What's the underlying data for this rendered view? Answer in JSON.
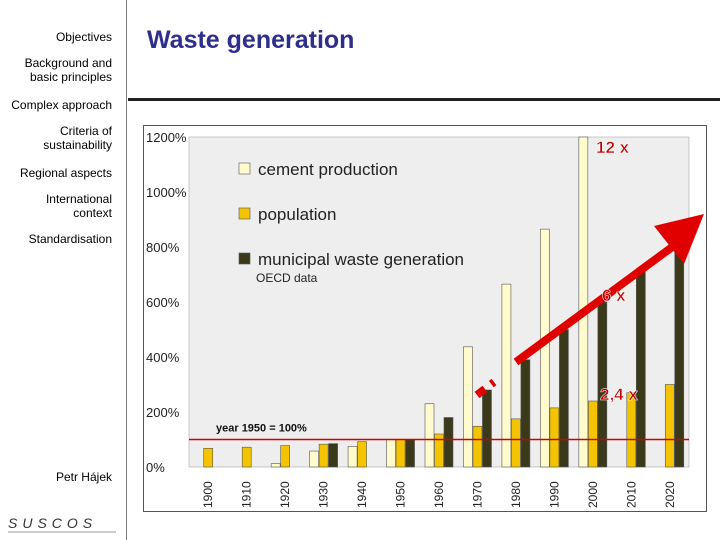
{
  "sidebar": {
    "items": [
      {
        "label": "Objectives"
      },
      {
        "label": "Background and basic principles"
      },
      {
        "label": "Complex approach"
      },
      {
        "label": "Criteria of sustainability"
      },
      {
        "label": "Regional aspects"
      },
      {
        "label": "International context"
      },
      {
        "label": "Standardisation"
      }
    ],
    "author": "Petr Hájek",
    "logo_text": "SUSCOS"
  },
  "slide": {
    "title": "Waste generation"
  },
  "colors": {
    "title": "#2e2e8c",
    "cement": "#fffbcc",
    "population": "#f5c400",
    "waste": "#3a3a1a",
    "reference_line": "#d40000",
    "arrow": "#e00000",
    "annotation": "#c00000"
  },
  "chart_data": {
    "type": "bar",
    "categories": [
      "1900",
      "1910",
      "1920",
      "1930",
      "1940",
      "1950",
      "1960",
      "1970",
      "1980",
      "1990",
      "2000",
      "2010",
      "2020"
    ],
    "series": [
      {
        "name": "cement production",
        "values": [
          null,
          null,
          12,
          58,
          75,
          100,
          230,
          437,
          665,
          865,
          1200,
          null,
          null
        ]
      },
      {
        "name": "population",
        "values": [
          68,
          72,
          78,
          83,
          92,
          100,
          120,
          148,
          175,
          215,
          240,
          270,
          300
        ]
      },
      {
        "name": "municipal waste generation",
        "values": [
          null,
          null,
          null,
          85,
          null,
          100,
          180,
          280,
          390,
          500,
          600,
          720,
          810
        ]
      }
    ],
    "ylim": [
      0,
      1200
    ],
    "yticks": [
      0,
      200,
      400,
      600,
      800,
      1000,
      1200
    ],
    "ytick_labels": [
      "0%",
      "200%",
      "400%",
      "600%",
      "800%",
      "1000%",
      "1200%"
    ],
    "legend": [
      "cement production",
      "population",
      "municipal waste generation"
    ],
    "source_note": "OECD data",
    "reference_line": {
      "value": 100,
      "label": "year 1950 = 100%"
    },
    "annotations": [
      "12 x",
      "6 x",
      "2,4 x"
    ]
  }
}
